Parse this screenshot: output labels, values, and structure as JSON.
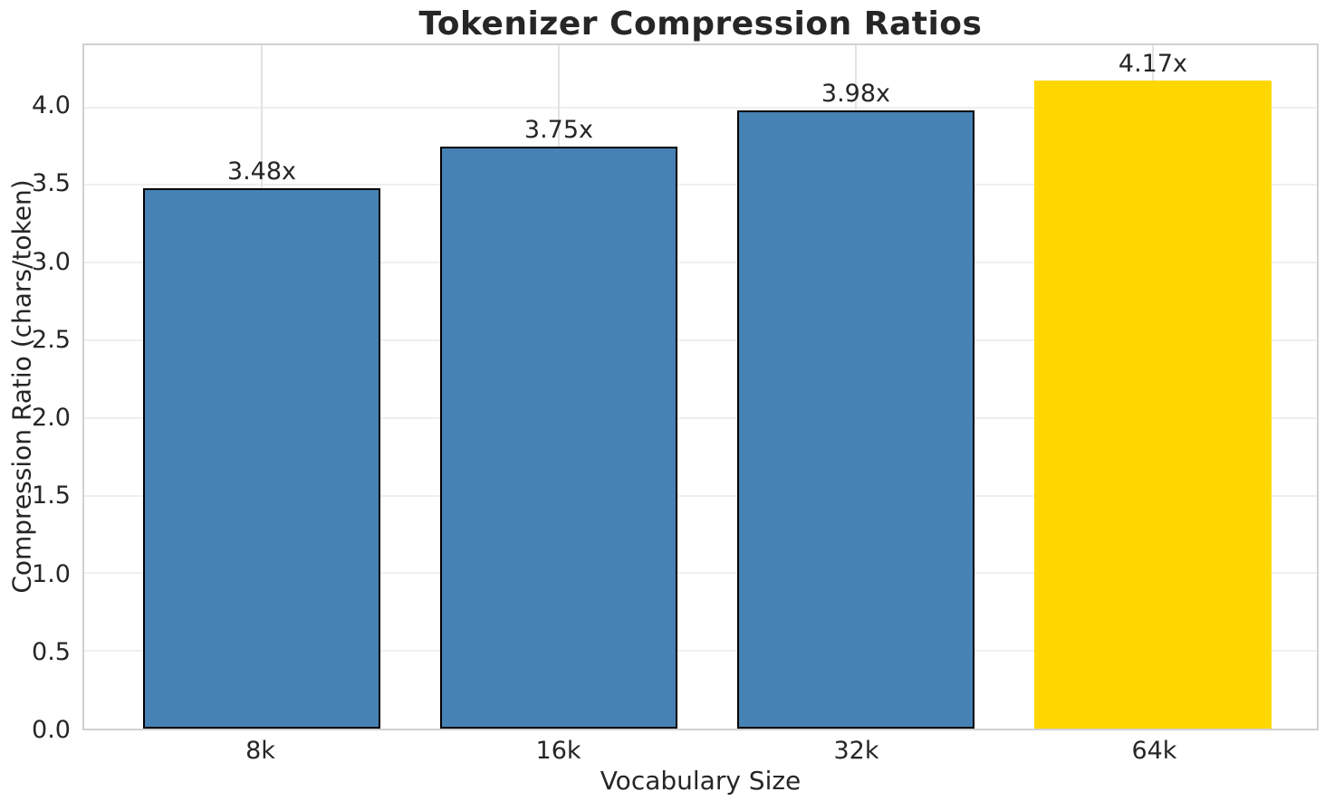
{
  "chart_data": {
    "type": "bar",
    "title": "Tokenizer Compression Ratios",
    "xlabel": "Vocabulary Size",
    "ylabel": "Compression Ratio (chars/token)",
    "categories": [
      "8k",
      "16k",
      "32k",
      "64k"
    ],
    "values": [
      3.48,
      3.75,
      3.98,
      4.17
    ],
    "bar_labels": [
      "3.48x",
      "3.75x",
      "3.98x",
      "4.17x"
    ],
    "bar_colors": [
      "#4682B4",
      "#4682B4",
      "#4682B4",
      "#FFD700"
    ],
    "bar_edge_colors": [
      "#000000",
      "#000000",
      "#000000",
      "none"
    ],
    "ylim": [
      0,
      4.4
    ],
    "ytick_values": [
      0,
      0.5,
      1,
      1.5,
      2,
      2.5,
      3,
      3.5,
      4
    ],
    "ytick_labels": [
      "0.0",
      "0.5",
      "1.0",
      "1.5",
      "2.0",
      "2.5",
      "3.0",
      "3.5",
      "4.0"
    ],
    "grid": true,
    "legend_position": "none",
    "colors": {
      "default_bar": "#4682B4",
      "highlight_bar": "#FFD700",
      "bar_edge": "#000000",
      "text": "#262626",
      "grid": "#e9e9e9",
      "spine": "#d0d0d0"
    }
  }
}
